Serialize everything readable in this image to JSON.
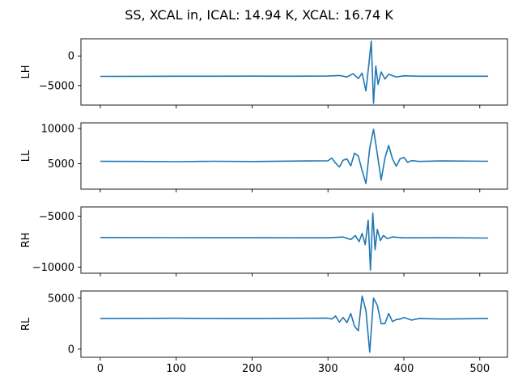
{
  "chart_data": {
    "type": "line",
    "title": "SS, XCAL in, ICAL: 14.94 K, XCAL: 16.74 K",
    "shared_x": true,
    "xlim": [
      -25.5,
      536.5
    ],
    "xticks": [
      0,
      100,
      200,
      300,
      400,
      500
    ],
    "color": "#1f77b4",
    "grid": false,
    "panels": [
      {
        "ylabel": "LH",
        "ylim": [
          -8300,
          2900
        ],
        "yticks": [
          0,
          -5000
        ],
        "ytick_labels": [
          "0",
          "−5000"
        ],
        "baseline": -3450,
        "x": [
          0,
          50,
          100,
          150,
          200,
          250,
          300,
          315,
          325,
          333,
          340,
          345,
          350,
          354,
          357,
          360,
          363,
          366,
          370,
          375,
          380,
          390,
          400,
          420,
          450,
          511
        ],
        "y": [
          -3450,
          -3440,
          -3420,
          -3430,
          -3410,
          -3420,
          -3400,
          -3300,
          -3550,
          -3000,
          -3800,
          -2900,
          -5900,
          -1200,
          2500,
          -8000,
          -1700,
          -4800,
          -2700,
          -3900,
          -3100,
          -3550,
          -3350,
          -3420,
          -3420,
          -3420
        ]
      },
      {
        "ylabel": "LL",
        "ylim": [
          1400,
          10800
        ],
        "yticks": [
          10000,
          5000
        ],
        "ytick_labels": [
          "10000",
          "5000"
        ],
        "baseline": 5350,
        "x": [
          0,
          50,
          100,
          150,
          200,
          250,
          300,
          305,
          310,
          315,
          320,
          325,
          330,
          335,
          340,
          345,
          350,
          355,
          360,
          365,
          370,
          375,
          380,
          385,
          390,
          395,
          400,
          405,
          410,
          420,
          450,
          511
        ],
        "y": [
          5350,
          5330,
          5300,
          5360,
          5320,
          5380,
          5420,
          5800,
          5100,
          4550,
          5500,
          5700,
          4700,
          6500,
          6100,
          4050,
          2200,
          7200,
          9900,
          6400,
          2700,
          5800,
          7600,
          5700,
          4650,
          5700,
          5900,
          5200,
          5450,
          5330,
          5400,
          5350
        ]
      },
      {
        "ylabel": "RH",
        "ylim": [
          -10600,
          -4100
        ],
        "yticks": [
          -5000,
          -10000
        ],
        "ytick_labels": [
          "−5000",
          "−10000"
        ],
        "baseline": -7100,
        "x": [
          0,
          100,
          200,
          300,
          320,
          330,
          336,
          341,
          345,
          349,
          353,
          356,
          359,
          362,
          365,
          369,
          373,
          378,
          385,
          400,
          450,
          511
        ],
        "y": [
          -7100,
          -7110,
          -7120,
          -7130,
          -7050,
          -7300,
          -6900,
          -7500,
          -6700,
          -7800,
          -5400,
          -10300,
          -4700,
          -8300,
          -6300,
          -7400,
          -6900,
          -7200,
          -7050,
          -7130,
          -7120,
          -7150
        ]
      },
      {
        "ylabel": "RL",
        "ylim": [
          -800,
          5700
        ],
        "yticks": [
          5000,
          0
        ],
        "ytick_labels": [
          "5000",
          "0"
        ],
        "baseline": 3000,
        "x": [
          0,
          50,
          100,
          150,
          200,
          250,
          300,
          305,
          310,
          315,
          320,
          325,
          330,
          335,
          340,
          345,
          350,
          355,
          360,
          365,
          370,
          375,
          380,
          385,
          390,
          395,
          400,
          410,
          420,
          450,
          511
        ],
        "y": [
          3000,
          3010,
          3030,
          3000,
          2990,
          3020,
          3040,
          2950,
          3250,
          2650,
          3100,
          2600,
          3500,
          2250,
          1800,
          5200,
          3800,
          -300,
          5000,
          4300,
          2500,
          2500,
          3500,
          2700,
          2900,
          2950,
          3100,
          2850,
          3000,
          2950,
          3000
        ]
      }
    ]
  }
}
